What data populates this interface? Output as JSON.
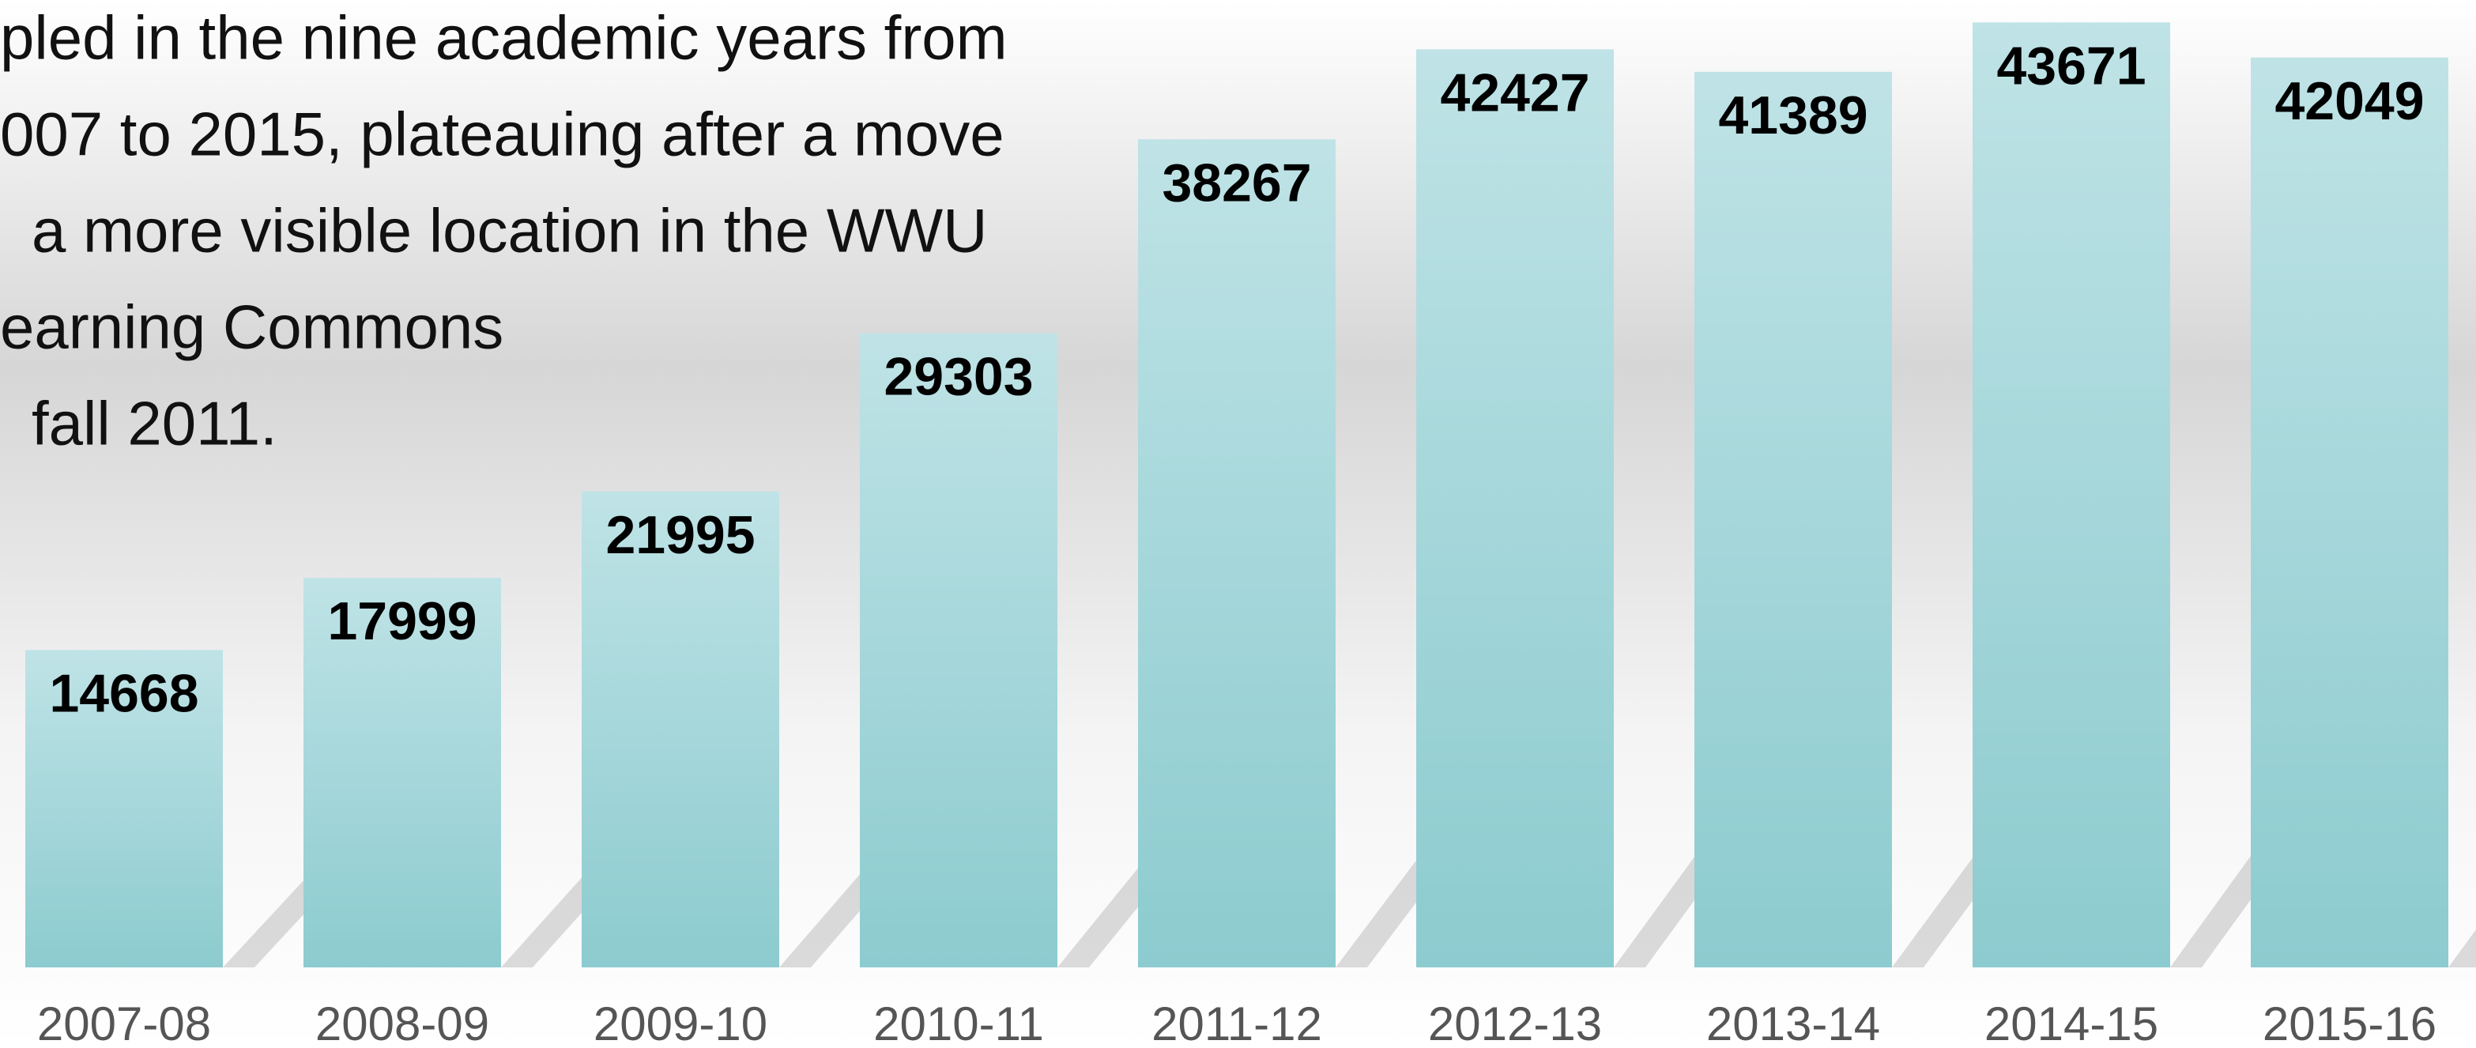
{
  "chart_data": {
    "type": "bar",
    "annotation": [
      "pled in the nine academic years from",
      "007 to 2015, plateauing after a move",
      "a more visible location in the WWU",
      "earning Commons",
      "fall 2011."
    ],
    "categories": [
      "2007-08",
      "2008-09",
      "2009-10",
      "2010-11",
      "2011-12",
      "2012-13",
      "2013-14",
      "2014-15",
      "2015-16"
    ],
    "values": [
      14668,
      17999,
      21995,
      29303,
      38267,
      42427,
      41389,
      43671,
      42049
    ],
    "color": "#8ccbcf",
    "ylim": [
      0,
      45000
    ]
  }
}
